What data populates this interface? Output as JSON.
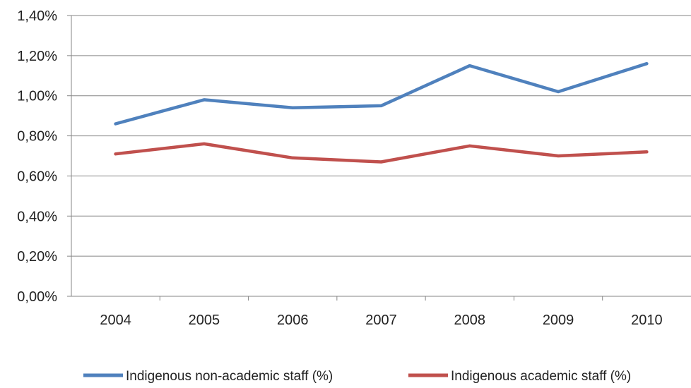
{
  "chart_data": {
    "type": "line",
    "categories": [
      "2004",
      "2005",
      "2006",
      "2007",
      "2008",
      "2009",
      "2010"
    ],
    "series": [
      {
        "name": "Indigenous non-academic staff (%)",
        "color": "#4F81BD",
        "values": [
          0.86,
          0.98,
          0.94,
          0.95,
          1.15,
          1.02,
          1.16
        ]
      },
      {
        "name": "Indigenous academic staff (%)",
        "color": "#C0504D",
        "values": [
          0.71,
          0.76,
          0.69,
          0.67,
          0.75,
          0.7,
          0.72
        ]
      }
    ],
    "yticks": [
      "0,00%",
      "0,20%",
      "0,40%",
      "0,60%",
      "0,80%",
      "1,00%",
      "1,20%",
      "1,40%"
    ],
    "ylim": [
      0,
      1.4
    ],
    "ystep": 0.2,
    "grid": true,
    "legend_position": "bottom"
  }
}
